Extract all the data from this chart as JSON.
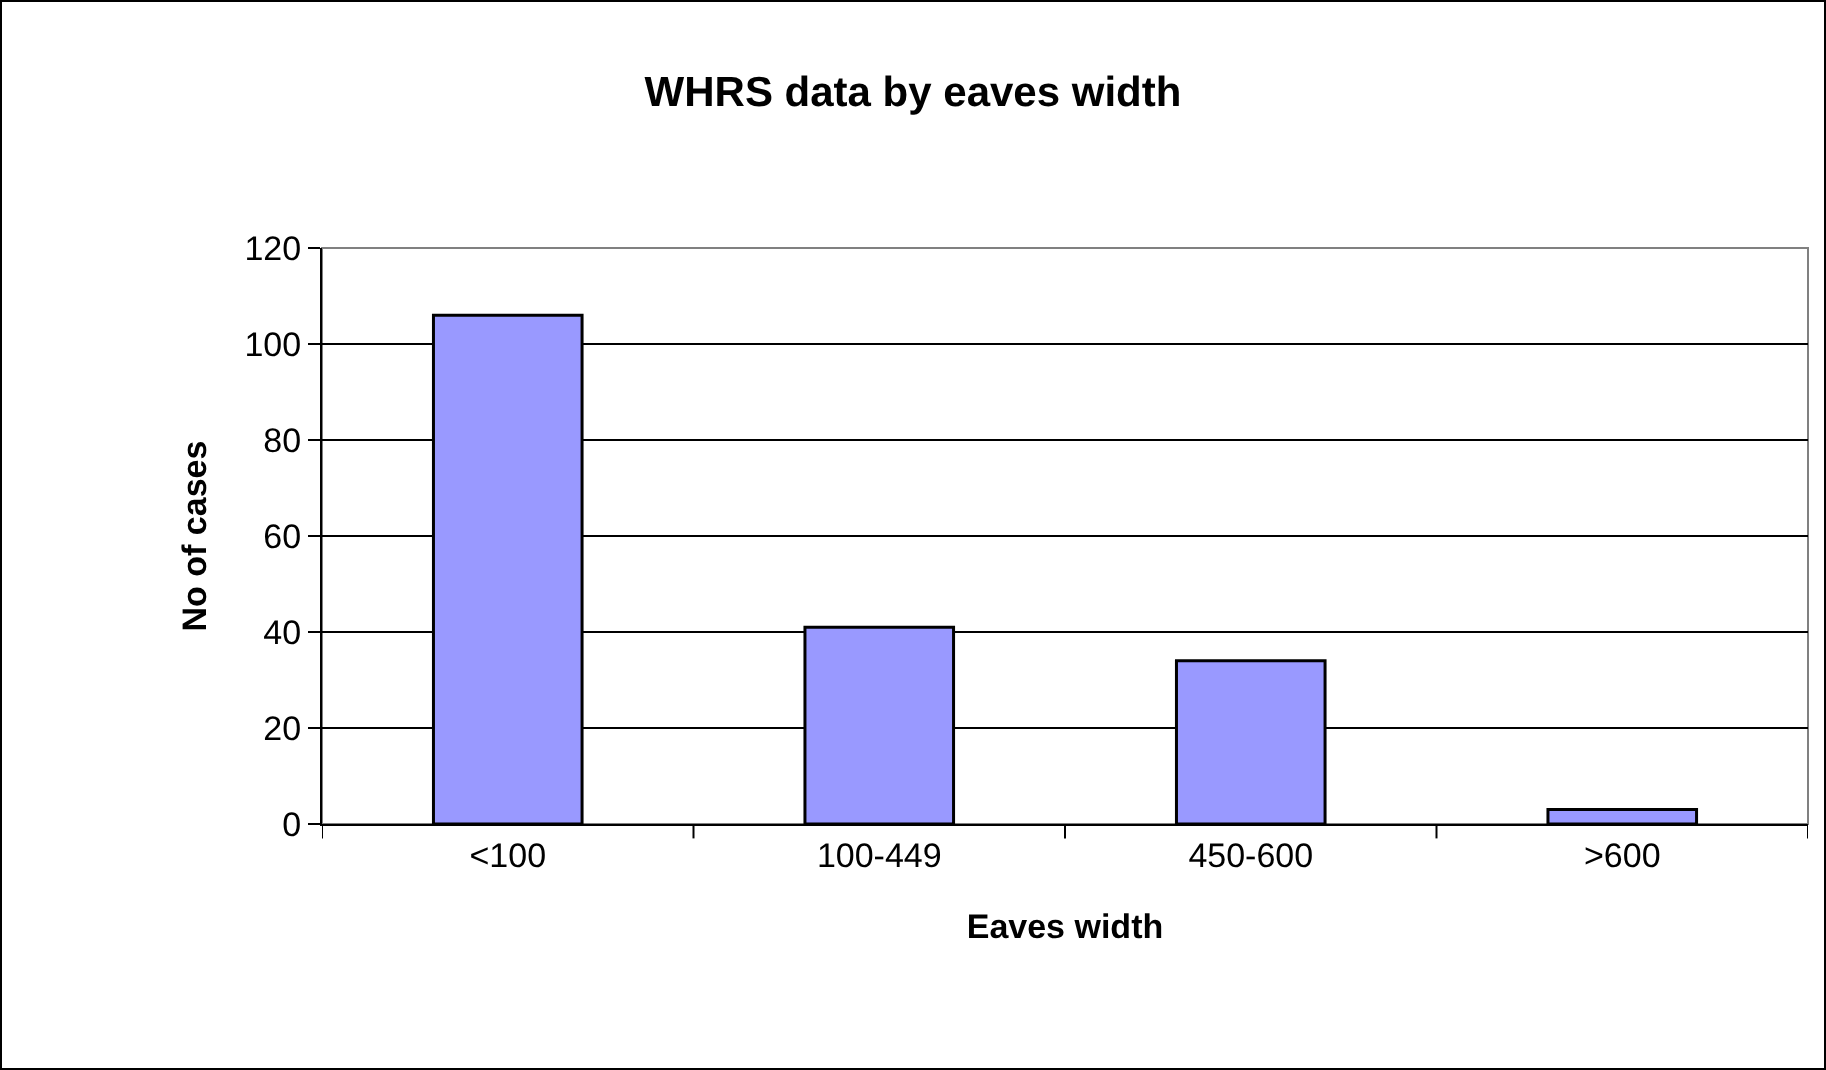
{
  "chart_data": {
    "type": "bar",
    "title": "WHRS data by eaves width",
    "xlabel": "Eaves width",
    "ylabel": "No of cases",
    "categories": [
      "<100",
      "100-449",
      "450-600",
      ">600"
    ],
    "values": [
      106,
      41,
      34,
      3
    ],
    "color": "#9999ff",
    "ylim": [
      0,
      120
    ],
    "yticks": [
      0,
      20,
      40,
      60,
      80,
      100,
      120
    ],
    "grid": "y"
  }
}
